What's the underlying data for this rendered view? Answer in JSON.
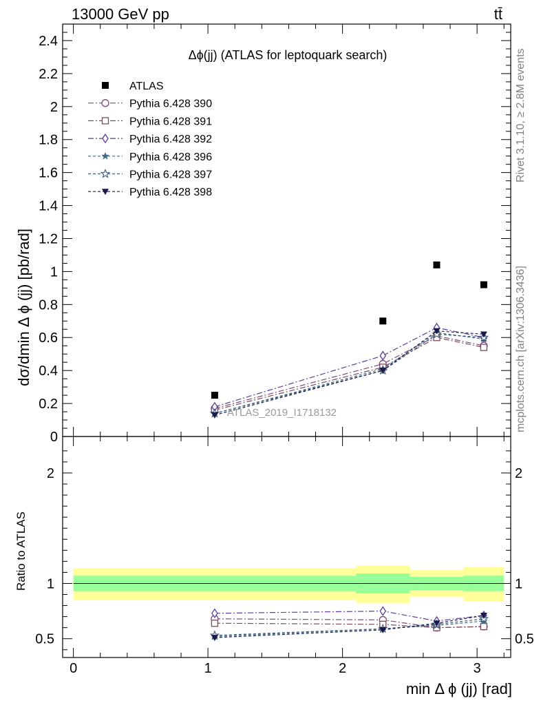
{
  "header": {
    "energy_label": "13000 GeV pp",
    "process_label": "tt̄"
  },
  "side": {
    "rivet_label": "Rivet 3.1.10, ≥ 2.8M events",
    "mcplots_label": "mcplots.cern.ch [arXiv:1306.3436]"
  },
  "colors": {
    "atlas": "#000000",
    "band_outer": "#ffff99",
    "band_inner": "#99ff99"
  },
  "chart_data": [
    {
      "type": "scatter",
      "title": "Δϕ(jj) (ATLAS for leptoquark search)",
      "watermark": "ATLAS_2019_I1718132",
      "xlabel": "min Δ ϕ (jj) [rad]",
      "ylabel": "dσ/dmin Δ ϕ (jj) [pb/rad]",
      "xlim": [
        -0.08,
        3.25
      ],
      "ylim": [
        0,
        2.5
      ],
      "y_ticks": [
        0,
        0.2,
        0.4,
        0.6,
        0.8,
        1,
        1.2,
        1.4,
        1.6,
        1.8,
        2,
        2.2,
        2.4
      ],
      "y_tick_labels": [
        "0",
        "0.2",
        "0.4",
        "0.6",
        "0.8",
        "1",
        "1.2",
        "1.4",
        "1.6",
        "1.8",
        "2",
        "2.2",
        "2.4"
      ],
      "legend_position": "top-left",
      "x": [
        1.05,
        2.3,
        2.7,
        3.05
      ],
      "series": [
        {
          "name": "ATLAS",
          "values": [
            0.25,
            0.7,
            1.04,
            0.92
          ],
          "color": "#000000",
          "marker": "filled-square",
          "line": "none"
        },
        {
          "name": "Pythia 6.428 390",
          "values": [
            0.17,
            0.44,
            0.61,
            0.55
          ],
          "color": "#7a4a7a",
          "marker": "open-circle",
          "line": "dashdot"
        },
        {
          "name": "Pythia 6.428 391",
          "values": [
            0.16,
            0.42,
            0.6,
            0.54
          ],
          "color": "#7a4a5a",
          "marker": "open-square",
          "line": "dashdot"
        },
        {
          "name": "Pythia 6.428 392",
          "values": [
            0.18,
            0.49,
            0.66,
            0.6
          ],
          "color": "#5a3a9a",
          "marker": "open-diamond",
          "line": "dashdot"
        },
        {
          "name": "Pythia 6.428 396",
          "values": [
            0.14,
            0.41,
            0.63,
            0.59
          ],
          "color": "#3a6a8a",
          "marker": "filled-star",
          "line": "dashed"
        },
        {
          "name": "Pythia 6.428 397",
          "values": [
            0.14,
            0.4,
            0.62,
            0.6
          ],
          "color": "#3a5a7a",
          "marker": "open-star",
          "line": "dashed"
        },
        {
          "name": "Pythia 6.428 398",
          "values": [
            0.13,
            0.4,
            0.64,
            0.62
          ],
          "color": "#1a1a4a",
          "marker": "filled-triangle-down",
          "line": "dashed"
        }
      ]
    },
    {
      "type": "line",
      "ylabel": "Ratio to ATLAS",
      "xlabel": "min Δ ϕ (jj) [rad]",
      "xlim": [
        -0.08,
        3.25
      ],
      "ylim": [
        0.33,
        2.33
      ],
      "x_ticks": [
        0,
        1,
        2,
        3
      ],
      "x_tick_labels": [
        "0",
        "1",
        "2",
        "3"
      ],
      "y_ticks": [
        0.5,
        1,
        2
      ],
      "y_tick_labels": [
        "0.5",
        "1",
        "2"
      ],
      "reference_line": 1,
      "uncertainty_bins": [
        {
          "x_low": 0.0,
          "x_high": 2.1,
          "inner": [
            0.93,
            1.07
          ],
          "outer": [
            0.85,
            1.14
          ]
        },
        {
          "x_low": 2.1,
          "x_high": 2.5,
          "inner": [
            0.91,
            1.09
          ],
          "outer": [
            0.82,
            1.16
          ]
        },
        {
          "x_low": 2.5,
          "x_high": 2.9,
          "inner": [
            0.94,
            1.06
          ],
          "outer": [
            0.88,
            1.12
          ]
        },
        {
          "x_low": 2.9,
          "x_high": 3.2,
          "inner": [
            0.93,
            1.07
          ],
          "outer": [
            0.84,
            1.15
          ]
        }
      ],
      "x": [
        1.05,
        2.3,
        2.7,
        3.05
      ],
      "series": [
        {
          "name": "Pythia 6.428 390",
          "values": [
            0.68,
            0.67,
            0.6,
            0.61
          ],
          "color": "#7a4a7a",
          "marker": "open-circle",
          "line": "dashdot"
        },
        {
          "name": "Pythia 6.428 391",
          "values": [
            0.64,
            0.63,
            0.6,
            0.61
          ],
          "color": "#7a4a5a",
          "marker": "open-square",
          "line": "dashdot"
        },
        {
          "name": "Pythia 6.428 392",
          "values": [
            0.73,
            0.75,
            0.66,
            0.71
          ],
          "color": "#5a3a9a",
          "marker": "open-diamond",
          "line": "dashdot"
        },
        {
          "name": "Pythia 6.428 396",
          "values": [
            0.52,
            0.59,
            0.62,
            0.66
          ],
          "color": "#3a6a8a",
          "marker": "filled-star",
          "line": "dashed"
        },
        {
          "name": "Pythia 6.428 397",
          "values": [
            0.53,
            0.59,
            0.63,
            0.68
          ],
          "color": "#3a5a7a",
          "marker": "open-star",
          "line": "dashed"
        },
        {
          "name": "Pythia 6.428 398",
          "values": [
            0.51,
            0.58,
            0.64,
            0.71
          ],
          "color": "#1a1a4a",
          "marker": "filled-triangle-down",
          "line": "dashed"
        }
      ]
    }
  ]
}
